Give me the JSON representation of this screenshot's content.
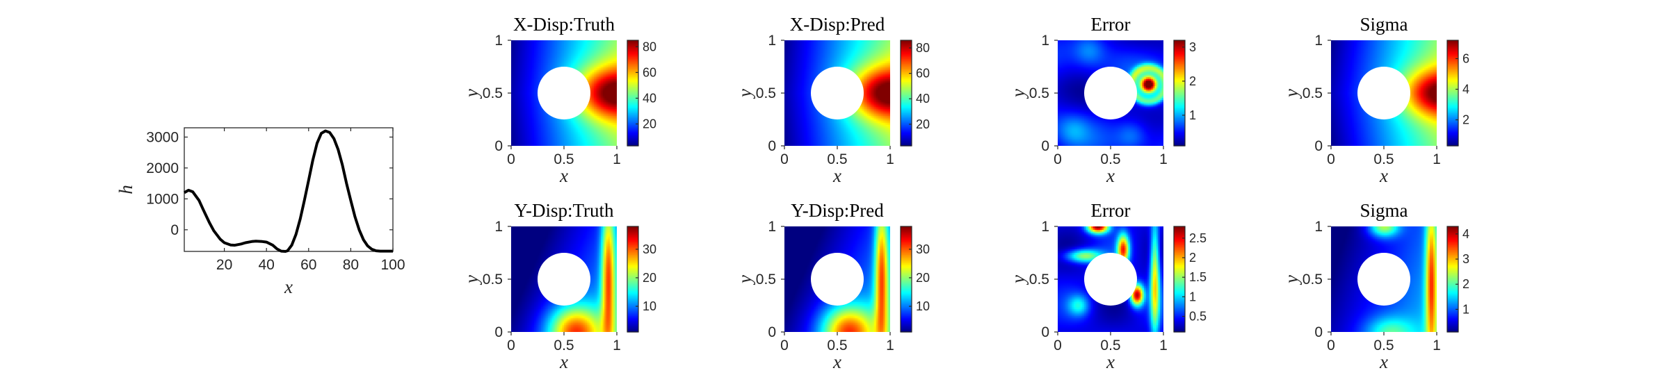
{
  "line_chart": {
    "ylabel": "h",
    "xlabel": "x"
  },
  "chart_data": [
    {
      "type": "line",
      "title": "",
      "xlabel": "x",
      "ylabel": "h",
      "xlim": [
        1,
        100
      ],
      "ylim": [
        -700,
        3300
      ],
      "xticks": [
        20,
        40,
        60,
        80,
        100
      ],
      "yticks": [
        0,
        1000,
        2000,
        3000
      ],
      "grid": false,
      "x": [
        1,
        3,
        5,
        8,
        10,
        13,
        15,
        18,
        20,
        23,
        25,
        28,
        30,
        33,
        35,
        38,
        40,
        43,
        45,
        47,
        49,
        50,
        52,
        54,
        56,
        58,
        60,
        62,
        64,
        66,
        68,
        70,
        72,
        74,
        76,
        78,
        80,
        82,
        84,
        86,
        88,
        90,
        92,
        94,
        96,
        98,
        100
      ],
      "series": [
        {
          "values": [
            1200,
            1280,
            1230,
            950,
            650,
            220,
            -30,
            -300,
            -420,
            -490,
            -500,
            -460,
            -420,
            -380,
            -370,
            -380,
            -400,
            -500,
            -620,
            -690,
            -700,
            -680,
            -500,
            -150,
            350,
            950,
            1600,
            2250,
            2800,
            3120,
            3200,
            3150,
            2950,
            2600,
            2100,
            1500,
            950,
            420,
            0,
            -320,
            -520,
            -630,
            -680,
            -690,
            -690,
            -690,
            -690
          ]
        }
      ]
    },
    {
      "type": "heatmap",
      "title": "X-Disp:Truth",
      "xlabel": "x",
      "ylabel": "y",
      "xlim": [
        0,
        1
      ],
      "ylim": [
        0,
        1
      ],
      "xticks": [
        "0",
        "0.5",
        "1"
      ],
      "yticks": [
        "0",
        "0.5",
        "1"
      ],
      "colorbar": {
        "min": 3,
        "max": 85,
        "ticks": [
          20,
          40,
          60,
          80
        ]
      },
      "hole": {
        "cx": 0.5,
        "cy": 0.5,
        "r": 0.25
      }
    },
    {
      "type": "heatmap",
      "title": "X-Disp:Pred",
      "xlabel": "x",
      "ylabel": "y",
      "xlim": [
        0,
        1
      ],
      "ylim": [
        0,
        1
      ],
      "xticks": [
        "0",
        "0.5",
        "1"
      ],
      "yticks": [
        "0",
        "0.5",
        "1"
      ],
      "colorbar": {
        "min": 3,
        "max": 86,
        "ticks": [
          20,
          40,
          60,
          80
        ]
      },
      "hole": {
        "cx": 0.5,
        "cy": 0.5,
        "r": 0.25
      }
    },
    {
      "type": "heatmap",
      "title": "Error",
      "xlabel": "x",
      "ylabel": "y",
      "xlim": [
        0,
        1
      ],
      "ylim": [
        0,
        1
      ],
      "xticks": [
        "0",
        "0.5",
        "1"
      ],
      "yticks": [
        "0",
        "0.5",
        "1"
      ],
      "colorbar": {
        "min": 0.1,
        "max": 3.2,
        "ticks": [
          1,
          2,
          3
        ]
      },
      "hole": {
        "cx": 0.5,
        "cy": 0.5,
        "r": 0.25
      }
    },
    {
      "type": "heatmap",
      "title": "Sigma",
      "xlabel": "x",
      "ylabel": "y",
      "xlim": [
        0,
        1
      ],
      "ylim": [
        0,
        1
      ],
      "xticks": [
        "0",
        "0.5",
        "1"
      ],
      "yticks": [
        "0",
        "0.5",
        "1"
      ],
      "colorbar": {
        "min": 0.3,
        "max": 7.2,
        "ticks": [
          2,
          4,
          6
        ]
      },
      "hole": {
        "cx": 0.5,
        "cy": 0.5,
        "r": 0.25
      }
    },
    {
      "type": "heatmap",
      "title": "Y-Disp:Truth",
      "xlabel": "x",
      "ylabel": "y",
      "xlim": [
        0,
        1
      ],
      "ylim": [
        0,
        1
      ],
      "xticks": [
        "0",
        "0.5",
        "1"
      ],
      "yticks": [
        "0",
        "0.5",
        "1"
      ],
      "colorbar": {
        "min": 1,
        "max": 38,
        "ticks": [
          10,
          20,
          30
        ]
      },
      "hole": {
        "cx": 0.5,
        "cy": 0.5,
        "r": 0.25
      }
    },
    {
      "type": "heatmap",
      "title": "Y-Disp:Pred",
      "xlabel": "x",
      "ylabel": "y",
      "xlim": [
        0,
        1
      ],
      "ylim": [
        0,
        1
      ],
      "xticks": [
        "0",
        "0.5",
        "1"
      ],
      "yticks": [
        "0",
        "0.5",
        "1"
      ],
      "colorbar": {
        "min": 1,
        "max": 38,
        "ticks": [
          10,
          20,
          30
        ]
      },
      "hole": {
        "cx": 0.5,
        "cy": 0.5,
        "r": 0.25
      }
    },
    {
      "type": "heatmap",
      "title": "Error",
      "xlabel": "x",
      "ylabel": "y",
      "xlim": [
        0,
        1
      ],
      "ylim": [
        0,
        1
      ],
      "xticks": [
        "0",
        "0.5",
        "1"
      ],
      "yticks": [
        "0",
        "0.5",
        "1"
      ],
      "colorbar": {
        "min": 0.1,
        "max": 2.8,
        "ticks": [
          0.5,
          1,
          1.5,
          2,
          2.5
        ]
      },
      "hole": {
        "cx": 0.5,
        "cy": 0.5,
        "r": 0.25
      }
    },
    {
      "type": "heatmap",
      "title": "Sigma",
      "xlabel": "x",
      "ylabel": "y",
      "xlim": [
        0,
        1
      ],
      "ylim": [
        0,
        1
      ],
      "xticks": [
        "0",
        "0.5",
        "1"
      ],
      "yticks": [
        "0",
        "0.5",
        "1"
      ],
      "colorbar": {
        "min": 0.1,
        "max": 4.3,
        "ticks": [
          1,
          2,
          3,
          4
        ]
      },
      "hole": {
        "cx": 0.5,
        "cy": 0.5,
        "r": 0.25
      }
    }
  ]
}
